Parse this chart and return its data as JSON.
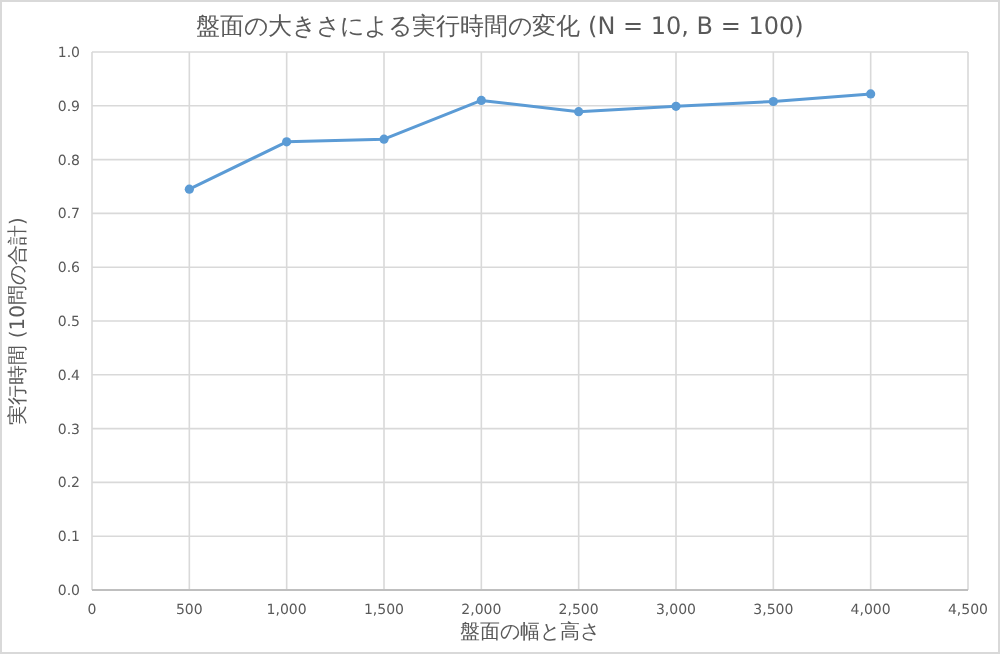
{
  "chart_data": {
    "type": "line",
    "title": "盤面の大きさによる実行時間の変化 (N = 10, B = 100)",
    "xlabel": "盤面の幅と高さ",
    "ylabel": "実行時間 (10問の合計)",
    "x": [
      500,
      1000,
      1500,
      2000,
      2500,
      3000,
      3500,
      4000
    ],
    "series": [
      {
        "color": "#5b9bd5",
        "values": [
          0.745,
          0.833,
          0.838,
          0.91,
          0.889,
          0.899,
          0.908,
          0.922
        ]
      }
    ],
    "xlim": [
      0,
      4500
    ],
    "xticks": [
      0,
      500,
      {
        "value": 1000,
        "label": "1,000"
      },
      {
        "value": 1500,
        "label": "1,500"
      },
      {
        "value": 2000,
        "label": "2,000"
      },
      {
        "value": 2500,
        "label": "2,500"
      },
      {
        "value": 3000,
        "label": "3,000"
      },
      {
        "value": 3500,
        "label": "3,500"
      },
      {
        "value": 4000,
        "label": "4,000"
      },
      {
        "value": 4500,
        "label": "4,500"
      }
    ],
    "ylim": [
      0,
      1
    ],
    "yticks": [
      {
        "value": 0,
        "label": "0.0"
      },
      0.1,
      0.2,
      0.3,
      0.4,
      0.5,
      0.6,
      0.7,
      0.8,
      0.9,
      {
        "value": 1,
        "label": "1.0"
      }
    ],
    "grid": true,
    "marker": "circle",
    "line_style": "solid"
  }
}
